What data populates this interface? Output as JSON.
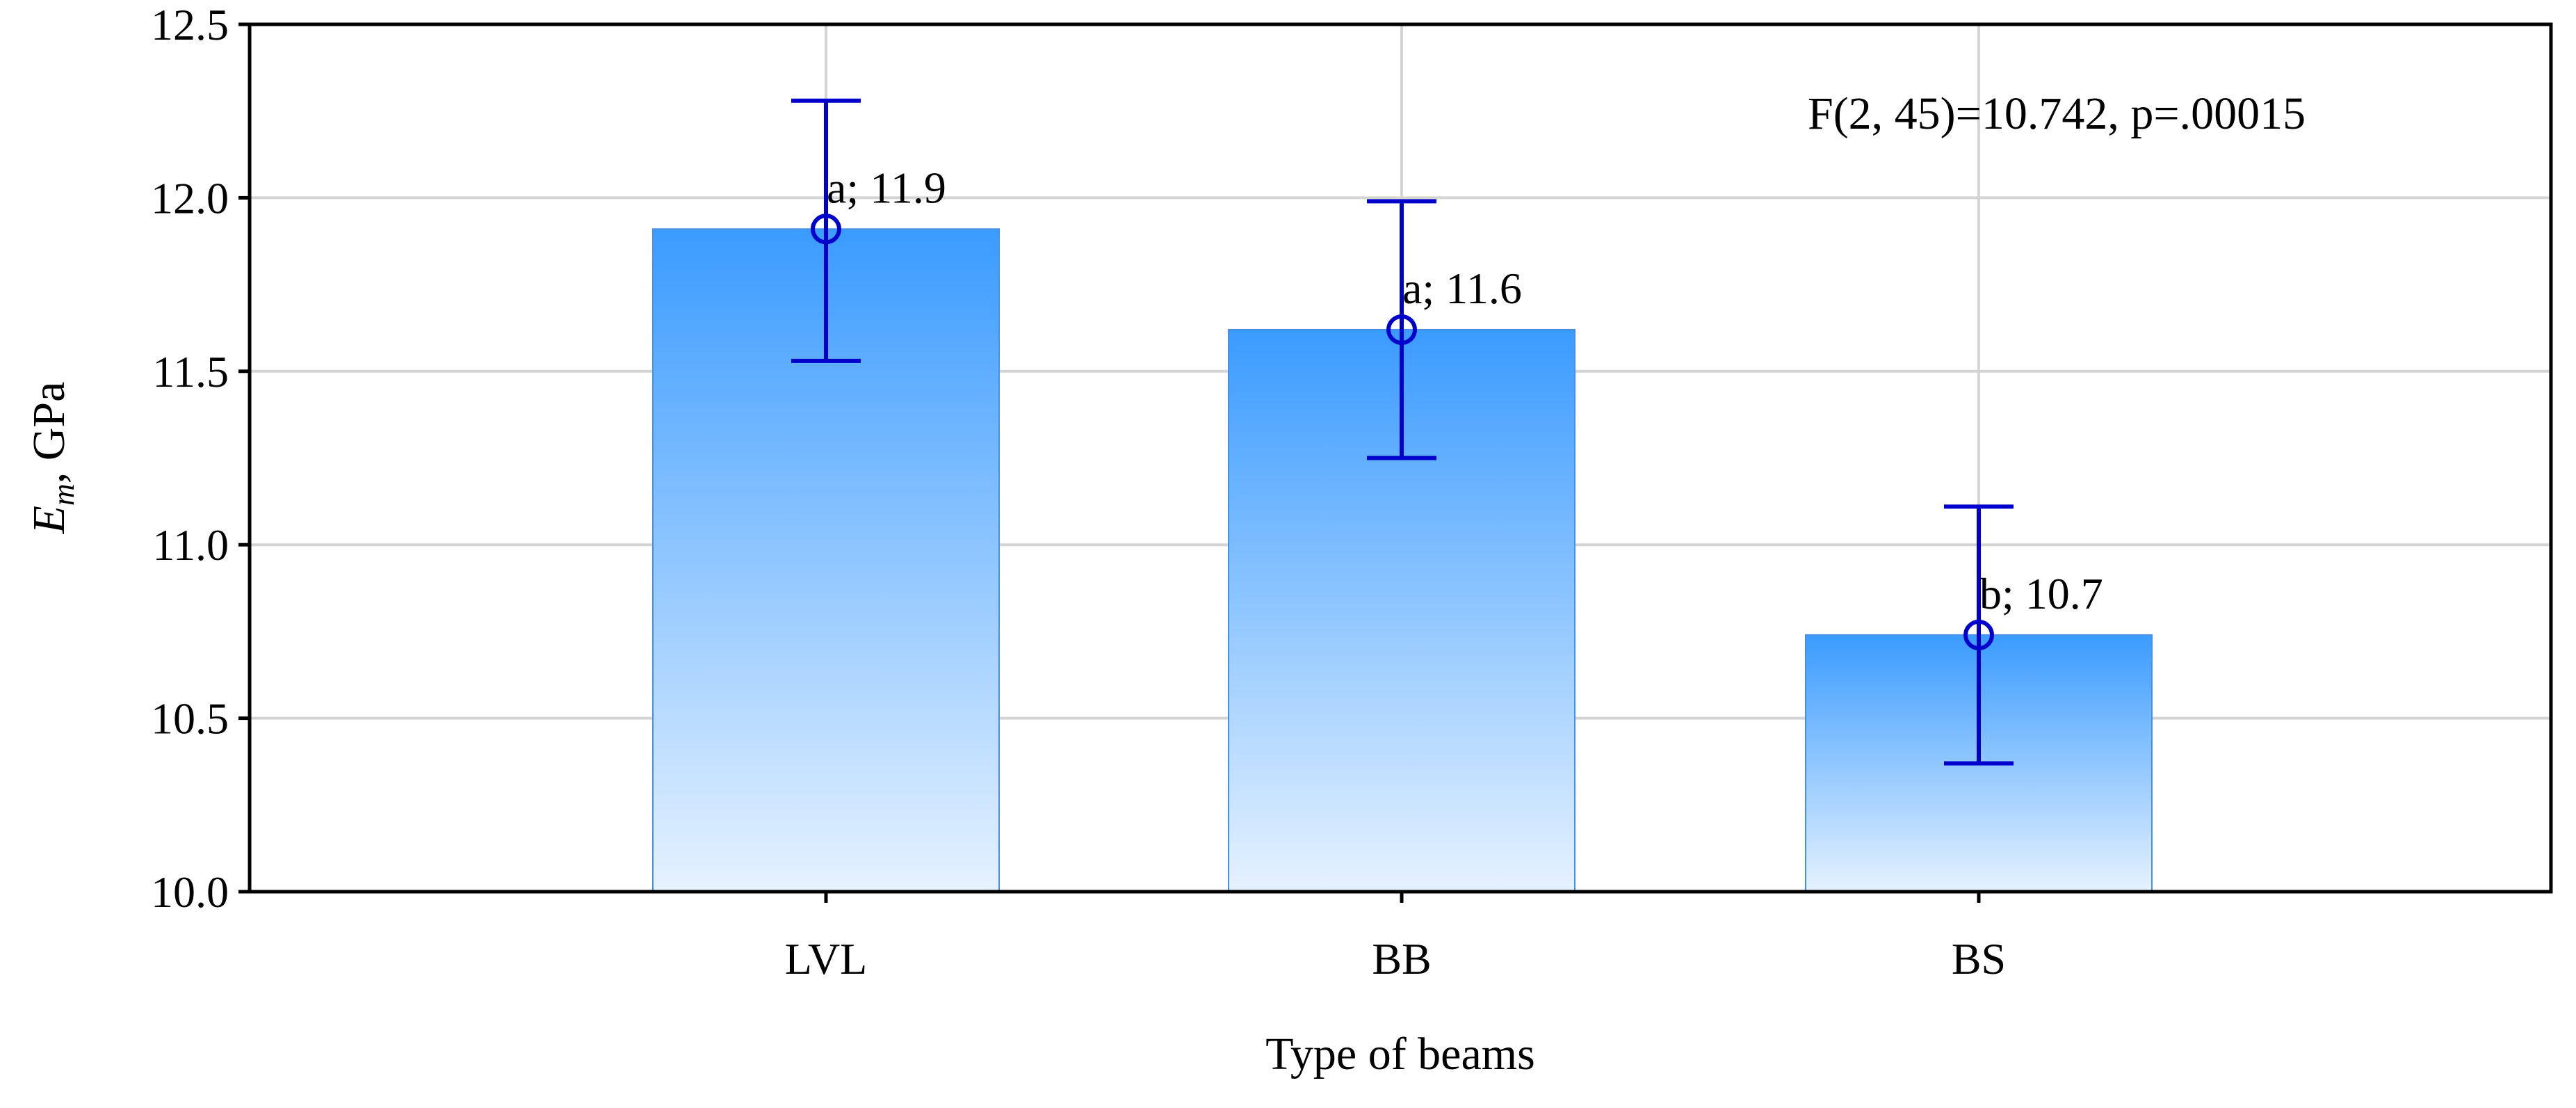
{
  "chart_data": {
    "type": "bar",
    "title": "",
    "xlabel": "Type of beams",
    "ylabel": {
      "main": "E",
      "sub": "m",
      "unit": ", GPa"
    },
    "ylim": [
      10.0,
      12.5
    ],
    "yticks": [
      "10.0",
      "10.5",
      "11.0",
      "11.5",
      "12.0",
      "12.5"
    ],
    "categories": [
      "LVL",
      "BB",
      "BS"
    ],
    "values": [
      11.91,
      11.62,
      10.74
    ],
    "error_low": [
      11.53,
      11.25,
      10.37
    ],
    "error_high": [
      12.28,
      11.99,
      11.11
    ],
    "bar_labels": [
      "a; 11.9",
      "a; 11.6",
      "b; 10.7"
    ],
    "annotation": "F(2, 45)=10.742, p=.00015",
    "grid": true,
    "colors": {
      "bar_top": "#3a9bff",
      "bar_bottom": "#e6f2ff",
      "bar_edge": "#4a90e2",
      "error": "#0000cc",
      "grid": "#d4d4d4",
      "axis": "#000000"
    }
  }
}
